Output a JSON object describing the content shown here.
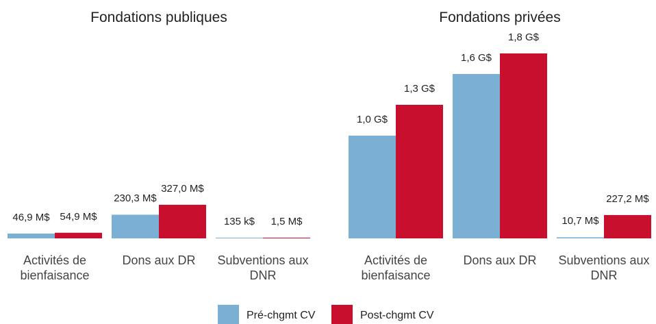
{
  "chart_data": [
    {
      "type": "bar",
      "title": "Fondations publiques",
      "categories": [
        "Activités de bienfaisance",
        "Dons aux DR",
        "Subventions aux DNR"
      ],
      "series": [
        {
          "name": "Pré-chgmt CV",
          "color": "#7bafd4",
          "values": [
            46.9,
            230.3,
            0.135
          ],
          "value_labels": [
            "46,9 M$",
            "230,3 M$",
            "135 k$"
          ]
        },
        {
          "name": "Post-chgmt CV",
          "color": "#c8102e",
          "values": [
            54.9,
            327.0,
            1.5
          ],
          "value_labels": [
            "54,9 M$",
            "327,0 M$",
            "1,5 M$"
          ]
        }
      ],
      "ylim": [
        0,
        2000
      ]
    },
    {
      "type": "bar",
      "title": "Fondations privées",
      "categories": [
        "Activités de bienfaisance",
        "Dons aux DR",
        "Subventions aux DNR"
      ],
      "series": [
        {
          "name": "Pré-chgmt CV",
          "color": "#7bafd4",
          "values": [
            1000,
            1600,
            10.7
          ],
          "value_labels": [
            "1,0 G$",
            "1,6 G$",
            "10,7 M$"
          ]
        },
        {
          "name": "Post-chgmt CV",
          "color": "#c8102e",
          "values": [
            1300,
            1800,
            227.2
          ],
          "value_labels": [
            "1,3 G$",
            "1,8 G$",
            "227,2 M$"
          ]
        }
      ],
      "ylim": [
        0,
        2000
      ]
    }
  ]
}
